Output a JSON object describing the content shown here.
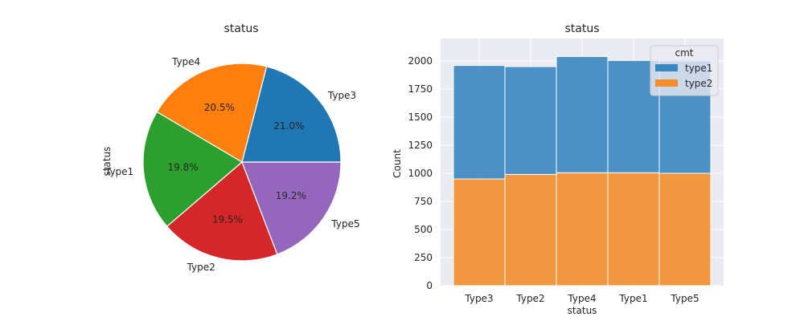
{
  "chart_data": [
    {
      "type": "pie",
      "title": "status",
      "ylabel": "status",
      "labels": [
        "Type3",
        "Type4",
        "Type1",
        "Type2",
        "Type5"
      ],
      "values": [
        21.0,
        20.5,
        19.8,
        19.5,
        19.2
      ],
      "autopct": [
        "21.0%",
        "20.5%",
        "19.8%",
        "19.5%",
        "19.2%"
      ],
      "colors": [
        "#1f77b4",
        "#ff7f0e",
        "#2ca02c",
        "#d62728",
        "#9467bd"
      ],
      "start_angle_deg": 0,
      "direction": "counterclockwise"
    },
    {
      "type": "bar",
      "stacked": true,
      "title": "status",
      "xlabel": "status",
      "ylabel": "Count",
      "categories": [
        "Type3",
        "Type2",
        "Type4",
        "Type1",
        "Type5"
      ],
      "series": [
        {
          "name": "type2",
          "values": [
            950,
            990,
            1005,
            1005,
            1000
          ],
          "color": "#f28e2b"
        },
        {
          "name": "type1",
          "values": [
            1010,
            960,
            1035,
            1000,
            1000
          ],
          "color": "#3a87c0"
        }
      ],
      "ylim": [
        0,
        2200
      ],
      "yticks": [
        0,
        250,
        500,
        750,
        1000,
        1250,
        1500,
        1750,
        2000
      ],
      "grid": true,
      "legend": {
        "title": "cmt",
        "entries": [
          "type1",
          "type2"
        ],
        "placement": "top-right"
      }
    }
  ]
}
